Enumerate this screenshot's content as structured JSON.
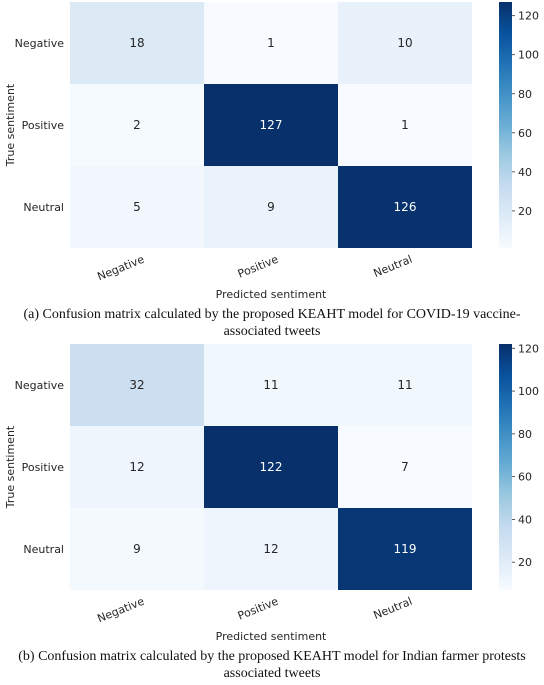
{
  "chart_data": [
    {
      "type": "heatmap",
      "xlabel": "Predicted sentiment",
      "ylabel": "True sentiment",
      "x_categories": [
        "Negative",
        "Positive",
        "Neutral"
      ],
      "y_categories": [
        "Negative",
        "Positive",
        "Neutral"
      ],
      "values": [
        [
          18,
          1,
          10
        ],
        [
          2,
          127,
          1
        ],
        [
          5,
          9,
          126
        ]
      ],
      "colorbar": {
        "min": 1,
        "max": 127,
        "ticks": [
          20,
          40,
          60,
          80,
          100,
          120
        ]
      },
      "colormap": "Blues",
      "caption": "(a)   Confusion matrix calculated by the proposed KEAHT model for COVID-19 vaccine-associated tweets"
    },
    {
      "type": "heatmap",
      "xlabel": "Predicted sentiment",
      "ylabel": "True sentiment",
      "x_categories": [
        "Negative",
        "Positive",
        "Neutral"
      ],
      "y_categories": [
        "Negative",
        "Positive",
        "Neutral"
      ],
      "values": [
        [
          32,
          11,
          11
        ],
        [
          12,
          122,
          7
        ],
        [
          9,
          12,
          119
        ]
      ],
      "colorbar": {
        "min": 7,
        "max": 122,
        "ticks": [
          20,
          40,
          60,
          80,
          100,
          120
        ]
      },
      "colormap": "Blues",
      "caption": "(b)   Confusion matrix calculated by the proposed KEAHT model for Indian farmer protests associated tweets"
    }
  ],
  "colors": {
    "low": "#f7fbff",
    "high": "#08306b",
    "text_dark": "#262626",
    "text_light": "#ffffff"
  }
}
